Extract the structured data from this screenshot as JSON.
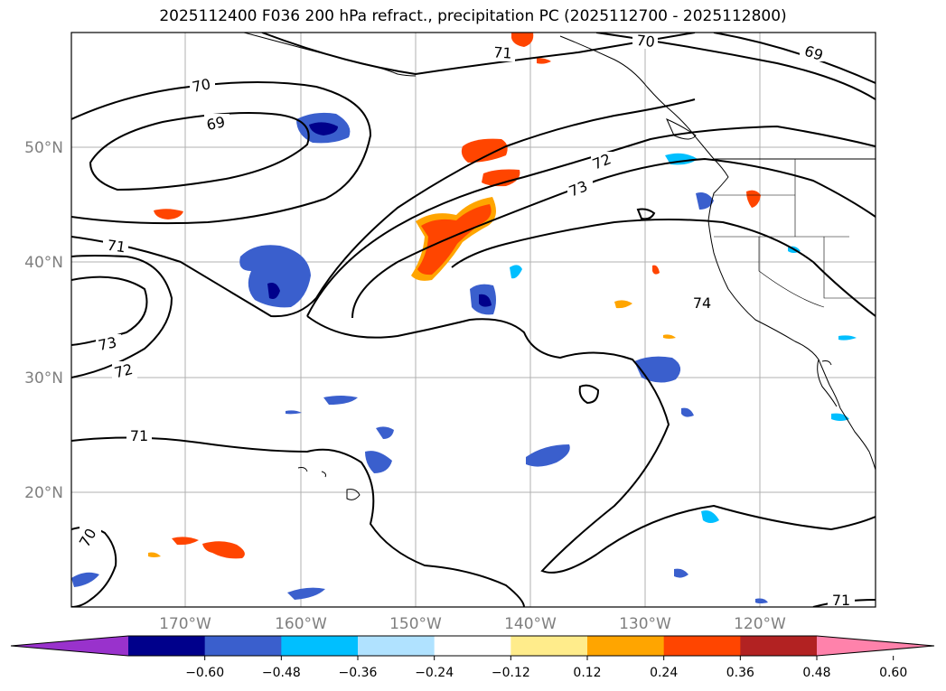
{
  "title": "2025112400 F036 200 hPa refract., precipitation PC (2025112700 - 2025112800)",
  "lat_ticks": [
    "50°N",
    "40°N",
    "30°N",
    "20°N"
  ],
  "lon_ticks": [
    "170°W",
    "160°W",
    "150°W",
    "140°W",
    "130°W",
    "120°W"
  ],
  "contour_labels": [
    "70",
    "71",
    "69",
    "72",
    "73",
    "74",
    "71",
    "73",
    "72",
    "71",
    "70",
    "69",
    "70",
    "71"
  ],
  "colorbar": {
    "ticks": [
      "−0.60",
      "−0.48",
      "−0.36",
      "−0.24",
      "−0.12",
      "0.12",
      "0.24",
      "0.36",
      "0.48",
      "0.60"
    ],
    "colors": [
      "#9932cc",
      "#00008b",
      "#3a5fcd",
      "#00bfff",
      "#b0e2ff",
      "#ffffff",
      "#ffec8b",
      "#ffa500",
      "#ff4500",
      "#b22222",
      "#ff82ab"
    ]
  },
  "colors": {
    "positive_high": "#ff4500",
    "positive_mid": "#ffa500",
    "positive_low": "#ffec8b",
    "negative_low": "#b0e2ff",
    "negative_mid": "#00bfff",
    "negative_high": "#3a5fcd",
    "negative_max": "#00008b"
  }
}
